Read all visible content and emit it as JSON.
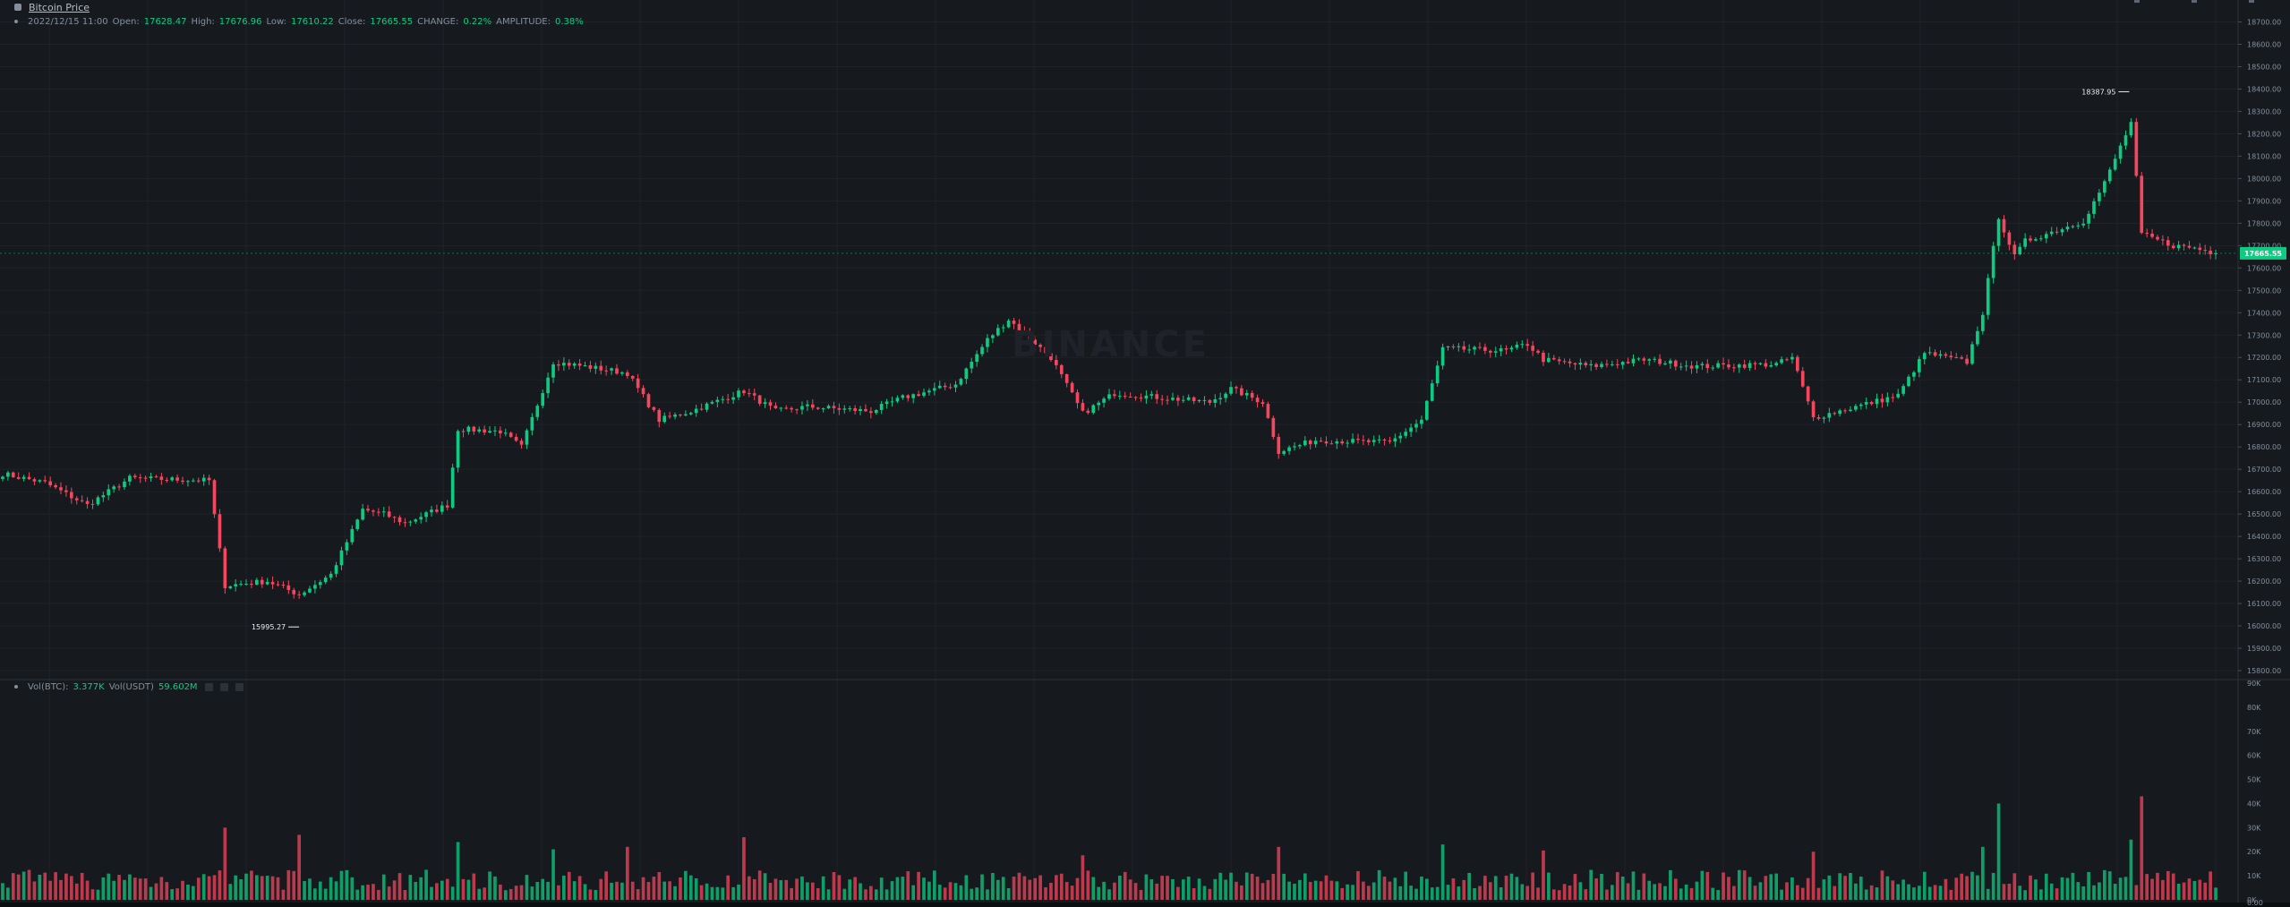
{
  "header": {
    "title": "Bitcoin Price",
    "ohlc": {
      "datetime": "2022/12/15 11:00",
      "open_label": "Open:",
      "open": "17628.47",
      "high_label": "High:",
      "high": "17676.96",
      "low_label": "Low:",
      "low": "17610.22",
      "close_label": "Close:",
      "close": "17665.55",
      "change_label": "CHANGE:",
      "change": "0.22%",
      "amplitude_label": "AMPLITUDE:",
      "amplitude": "0.38%"
    }
  },
  "volume_legend": {
    "btc_label": "Vol(BTC):",
    "btc": "3.377K",
    "usdt_label": "Vol(USDT)",
    "usdt": "59.602M"
  },
  "watermark": "BINANCE",
  "colors": {
    "background": "#161a1e",
    "up": "#0ecb81",
    "down": "#f6465d",
    "grid": "#1e2329",
    "axis_text": "#848e9c",
    "price_badge": "#0ecb81"
  },
  "chart_data": {
    "type": "candlestick",
    "price_axis": {
      "ylim": [
        15800,
        18730
      ],
      "ticks": [
        "18700.00",
        "18600.00",
        "18500.00",
        "18400.00",
        "18300.00",
        "18200.00",
        "18100.00",
        "18000.00",
        "17900.00",
        "17800.00",
        "17700.00",
        "17600.00",
        "17500.00",
        "17400.00",
        "17300.00",
        "17200.00",
        "17100.00",
        "17000.00",
        "16900.00",
        "16800.00",
        "16700.00",
        "16600.00",
        "16500.00",
        "16400.00",
        "16300.00",
        "16200.00",
        "16100.00",
        "16000.00",
        "15900.00",
        "15800.00"
      ]
    },
    "volume_axis": {
      "ylim": [
        0,
        90000
      ],
      "ticks": [
        "90K",
        "80K",
        "70K",
        "60K",
        "50K",
        "40K",
        "30K",
        "20K",
        "10K",
        "0K",
        "0.00"
      ]
    },
    "last_price": "17665.55",
    "annotations": [
      {
        "label": "18387.95",
        "kind": "high"
      },
      {
        "label": "15995.27",
        "kind": "low"
      }
    ],
    "waypoints": [
      {
        "i": 0,
        "p": 16680
      },
      {
        "i": 8,
        "p": 16640
      },
      {
        "i": 16,
        "p": 16540
      },
      {
        "i": 24,
        "p": 16660
      },
      {
        "i": 39,
        "p": 16650
      },
      {
        "i": 42,
        "p": 16180
      },
      {
        "i": 50,
        "p": 16200
      },
      {
        "i": 56,
        "p": 16140
      },
      {
        "i": 62,
        "p": 16230
      },
      {
        "i": 68,
        "p": 16520
      },
      {
        "i": 72,
        "p": 16500
      },
      {
        "i": 76,
        "p": 16460
      },
      {
        "i": 84,
        "p": 16540
      },
      {
        "i": 86,
        "p": 16880
      },
      {
        "i": 94,
        "p": 16870
      },
      {
        "i": 98,
        "p": 16800
      },
      {
        "i": 104,
        "p": 17180
      },
      {
        "i": 110,
        "p": 17160
      },
      {
        "i": 118,
        "p": 17130
      },
      {
        "i": 124,
        "p": 16920
      },
      {
        "i": 130,
        "p": 16960
      },
      {
        "i": 140,
        "p": 17050
      },
      {
        "i": 146,
        "p": 16960
      },
      {
        "i": 152,
        "p": 16980
      },
      {
        "i": 164,
        "p": 16960
      },
      {
        "i": 170,
        "p": 17020
      },
      {
        "i": 180,
        "p": 17080
      },
      {
        "i": 186,
        "p": 17280
      },
      {
        "i": 190,
        "p": 17370
      },
      {
        "i": 198,
        "p": 17200
      },
      {
        "i": 204,
        "p": 16950
      },
      {
        "i": 210,
        "p": 17040
      },
      {
        "i": 228,
        "p": 17000
      },
      {
        "i": 232,
        "p": 17060
      },
      {
        "i": 238,
        "p": 17000
      },
      {
        "i": 241,
        "p": 16780
      },
      {
        "i": 248,
        "p": 16830
      },
      {
        "i": 262,
        "p": 16820
      },
      {
        "i": 268,
        "p": 16920
      },
      {
        "i": 272,
        "p": 17240
      },
      {
        "i": 284,
        "p": 17230
      },
      {
        "i": 288,
        "p": 17260
      },
      {
        "i": 291,
        "p": 17190
      },
      {
        "i": 300,
        "p": 17160
      },
      {
        "i": 310,
        "p": 17190
      },
      {
        "i": 320,
        "p": 17160
      },
      {
        "i": 335,
        "p": 17170
      },
      {
        "i": 338,
        "p": 17200
      },
      {
        "i": 342,
        "p": 16930
      },
      {
        "i": 350,
        "p": 16980
      },
      {
        "i": 358,
        "p": 17030
      },
      {
        "i": 363,
        "p": 17220
      },
      {
        "i": 371,
        "p": 17180
      },
      {
        "i": 374,
        "p": 17400
      },
      {
        "i": 377,
        "p": 17830
      },
      {
        "i": 380,
        "p": 17650
      },
      {
        "i": 382,
        "p": 17720
      },
      {
        "i": 393,
        "p": 17810
      },
      {
        "i": 397,
        "p": 17980
      },
      {
        "i": 402,
        "p": 18250
      },
      {
        "i": 404,
        "p": 17750
      },
      {
        "i": 410,
        "p": 17700
      },
      {
        "i": 414,
        "p": 17690
      },
      {
        "i": 418,
        "p": 17665
      }
    ],
    "volume_spikes": [
      {
        "i": 42,
        "v": 30000
      },
      {
        "i": 56,
        "v": 27000
      },
      {
        "i": 86,
        "v": 24000
      },
      {
        "i": 104,
        "v": 21000
      },
      {
        "i": 118,
        "v": 22000
      },
      {
        "i": 140,
        "v": 26000
      },
      {
        "i": 204,
        "v": 18500
      },
      {
        "i": 241,
        "v": 22000
      },
      {
        "i": 272,
        "v": 23000
      },
      {
        "i": 291,
        "v": 20500
      },
      {
        "i": 342,
        "v": 20000
      },
      {
        "i": 374,
        "v": 22000
      },
      {
        "i": 377,
        "v": 40000
      },
      {
        "i": 402,
        "v": 25000
      },
      {
        "i": 404,
        "v": 43000
      }
    ],
    "candle_count": 419
  }
}
